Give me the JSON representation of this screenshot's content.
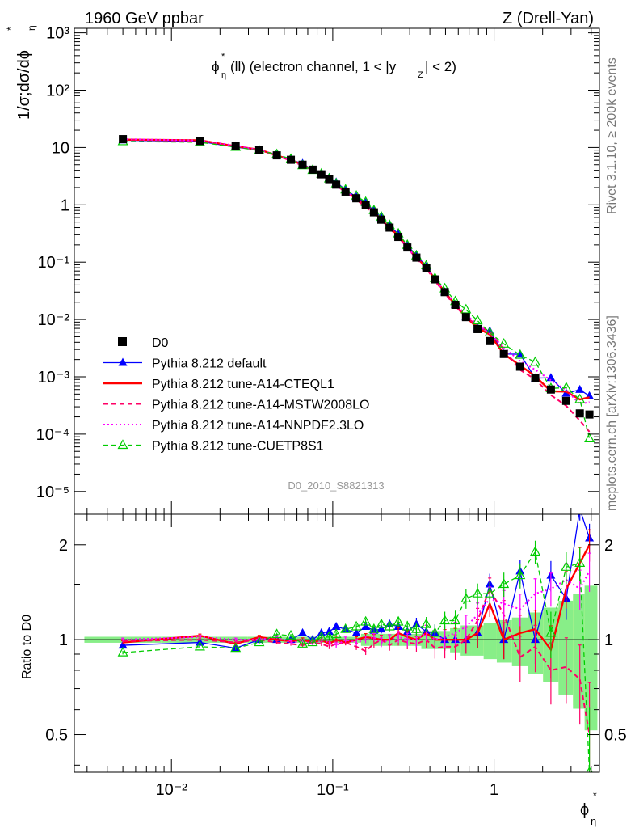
{
  "header": {
    "left": "1960 GeV ppbar",
    "right": "Z (Drell-Yan)",
    "plot_title_main": "ϕ",
    "plot_title_rest": "(ll) (electron channel, 1 < |y",
    "plot_title_end": "| < 2)",
    "analysis_id": "D0_2010_S8821313",
    "side_rivet": "Rivet 3.1.10, ≥ 200k events",
    "side_mcplots": "mcplots.cern.ch [arXiv:1306.3436]"
  },
  "axes": {
    "main_ylabel": "1/σ;dσ/dϕ",
    "ratio_ylabel": "Ratio to D0",
    "xlabel": "ϕ",
    "main_yticks": [
      "10⁻⁵",
      "10⁻⁴",
      "10⁻³",
      "10⁻²",
      "10⁻¹",
      "1",
      "10",
      "10²",
      "10³"
    ],
    "ratio_yticks": [
      "0.5",
      "1",
      "2"
    ],
    "xticks": [
      "10⁻²",
      "10⁻¹",
      "1"
    ]
  },
  "chart_data": {
    "type": "line",
    "x_scale": "log",
    "xlim": [
      0.0025,
      4.5
    ],
    "ylim_main": [
      4e-06,
      1200
    ],
    "ylim_ratio": [
      0.38,
      2.5
    ],
    "x": [
      0.005,
      0.015,
      0.025,
      0.035,
      0.045,
      0.055,
      0.065,
      0.075,
      0.085,
      0.095,
      0.105,
      0.12,
      0.14,
      0.16,
      0.18,
      0.2,
      0.225,
      0.255,
      0.29,
      0.33,
      0.38,
      0.43,
      0.495,
      0.575,
      0.67,
      0.79,
      0.94,
      1.15,
      1.45,
      1.8,
      2.25,
      2.8,
      3.4,
      3.9
    ],
    "data": {
      "name": "D0",
      "values": [
        14.0,
        13.0,
        10.8,
        9.0,
        7.3,
        6.1,
        5.0,
        4.1,
        3.4,
        2.8,
        2.25,
        1.7,
        1.3,
        0.98,
        0.74,
        0.55,
        0.4,
        0.275,
        0.18,
        0.12,
        0.078,
        0.05,
        0.03,
        0.018,
        0.011,
        0.0068,
        0.0042,
        0.0025,
        0.0015,
        0.00095,
        0.0006,
        0.00038,
        0.00023,
        0.00022
      ]
    },
    "series": [
      {
        "name": "Pythia 8.212 default",
        "color": "#0000ff",
        "ratio": [
          0.96,
          0.98,
          0.94,
          1.0,
          1.0,
          1.0,
          1.05,
          1.0,
          1.05,
          1.06,
          1.1,
          1.08,
          1.05,
          1.1,
          1.07,
          1.08,
          1.12,
          1.1,
          1.06,
          1.12,
          1.06,
          1.05,
          1.0,
          1.0,
          1.0,
          1.05,
          1.5,
          1.0,
          1.65,
          1.0,
          1.6,
          1.35,
          2.6,
          2.1
        ]
      },
      {
        "name": "Pythia 8.212 tune-A14-CTEQL1",
        "color": "#ff0000",
        "ratio": [
          0.98,
          1.03,
          0.97,
          1.02,
          1.0,
          0.99,
          1.0,
          0.98,
          1.0,
          0.97,
          1.0,
          0.98,
          1.0,
          1.02,
          1.01,
          1.0,
          1.0,
          1.05,
          1.02,
          1.0,
          1.05,
          1.0,
          1.0,
          1.0,
          1.0,
          1.05,
          1.3,
          1.0,
          1.05,
          1.08,
          0.93,
          1.45,
          1.75,
          2.0
        ]
      },
      {
        "name": "Pythia 8.212 tune-A14-MSTW2008LO",
        "color": "#ff0066",
        "ratio": [
          0.99,
          1.0,
          0.98,
          1.0,
          0.98,
          0.97,
          0.96,
          0.98,
          0.97,
          0.95,
          0.97,
          0.98,
          0.95,
          0.92,
          0.97,
          1.0,
          0.96,
          1.0,
          0.98,
          0.97,
          1.0,
          0.94,
          0.95,
          0.95,
          1.0,
          1.15,
          1.45,
          1.2,
          0.88,
          0.95,
          0.8,
          0.82,
          0.75,
          0.5
        ]
      },
      {
        "name": "Pythia 8.212 tune-A14-NNPDF2.3LO",
        "color": "#ff00ff",
        "ratio": [
          1.0,
          1.02,
          1.0,
          1.0,
          1.02,
          0.98,
          0.99,
          0.97,
          1.0,
          0.98,
          0.96,
          1.0,
          0.98,
          1.0,
          1.02,
          0.98,
          1.0,
          1.02,
          1.0,
          1.0,
          1.05,
          1.0,
          1.02,
          1.05,
          1.1,
          1.2,
          1.35,
          1.3,
          1.25,
          1.4,
          1.45,
          1.55,
          1.45,
          1.65
        ]
      },
      {
        "name": "Pythia 8.212 tune-CUETP8S1",
        "color": "#00cc00",
        "ratio": [
          0.91,
          0.95,
          0.94,
          0.98,
          1.04,
          1.03,
          0.97,
          0.98,
          1.02,
          1.02,
          1.04,
          1.08,
          1.1,
          1.14,
          1.08,
          1.12,
          1.1,
          1.14,
          1.1,
          1.08,
          1.12,
          1.05,
          1.15,
          1.15,
          1.35,
          1.4,
          1.4,
          1.5,
          1.6,
          1.9,
          1.05,
          1.7,
          1.75,
          0.38
        ]
      }
    ],
    "legend": [
      "D0",
      "Pythia 8.212 default",
      "Pythia 8.212 tune-A14-CTEQL1",
      "Pythia 8.212 tune-A14-MSTW2008LO",
      "Pythia 8.212 tune-A14-NNPDF2.3LO",
      "Pythia 8.212 tune-CUETP8S1"
    ],
    "band_stat": [
      0.01,
      0.01,
      0.01,
      0.01,
      0.01,
      0.01,
      0.01,
      0.01,
      0.01,
      0.01,
      0.01,
      0.01,
      0.01,
      0.02,
      0.02,
      0.02,
      0.02,
      0.02,
      0.02,
      0.02,
      0.03,
      0.03,
      0.03,
      0.04,
      0.05,
      0.05,
      0.06,
      0.07,
      0.08,
      0.1,
      0.12,
      0.15,
      0.18,
      0.22
    ],
    "band_total": [
      0.02,
      0.02,
      0.02,
      0.02,
      0.02,
      0.02,
      0.02,
      0.02,
      0.02,
      0.02,
      0.02,
      0.02,
      0.02,
      0.03,
      0.03,
      0.03,
      0.03,
      0.03,
      0.04,
      0.04,
      0.05,
      0.05,
      0.06,
      0.07,
      0.08,
      0.09,
      0.1,
      0.12,
      0.15,
      0.2,
      0.26,
      0.32,
      0.38,
      0.45
    ]
  }
}
